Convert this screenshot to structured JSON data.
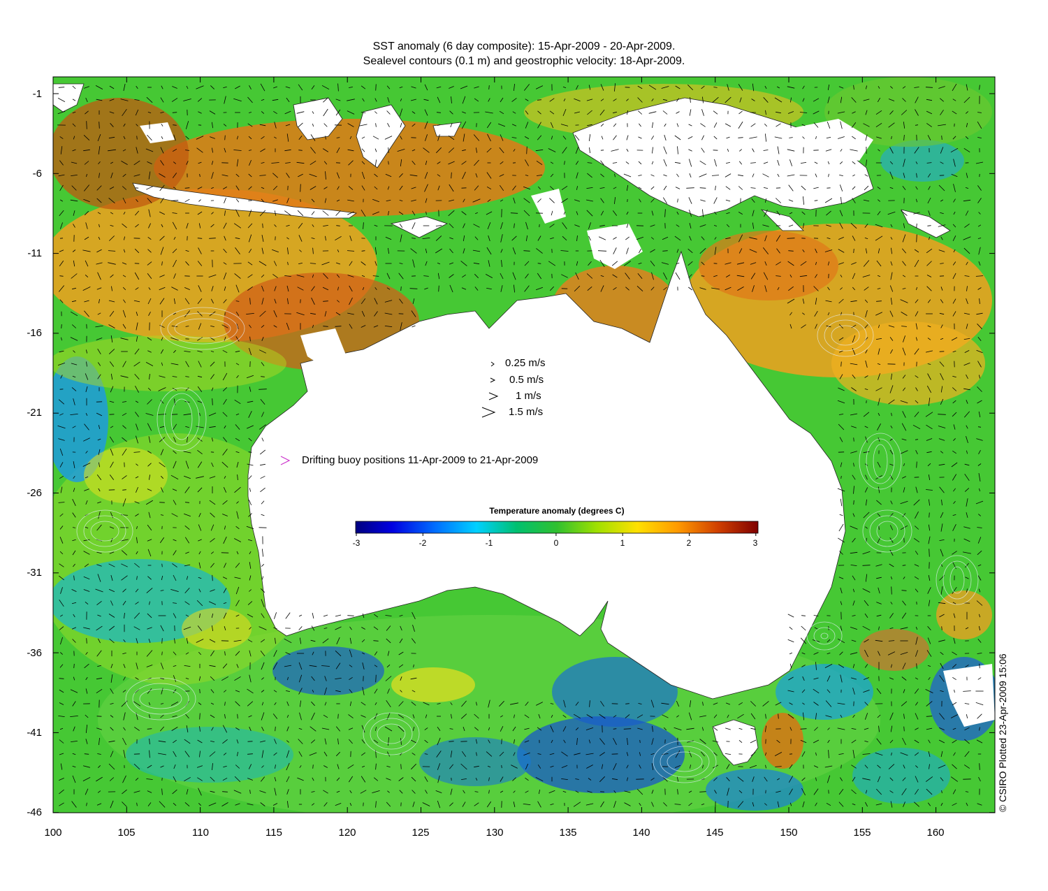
{
  "title": {
    "line1": "SST anomaly (6 day composite): 15-Apr-2009 - 20-Apr-2009.",
    "line2": "Sealevel contours (0.1 m) and geostrophic velocity: 18-Apr-2009."
  },
  "axes": {
    "y_ticks": [
      "-1",
      "-6",
      "-11",
      "-16",
      "-21",
      "-26",
      "-31",
      "-36",
      "-41",
      "-46"
    ],
    "x_ticks": [
      "100",
      "105",
      "110",
      "115",
      "120",
      "125",
      "130",
      "135",
      "140",
      "145",
      "150",
      "155",
      "160"
    ]
  },
  "velocity_legend": [
    {
      "label": "0.25 m/s",
      "speed": 0.25
    },
    {
      "label": "0.5 m/s",
      "speed": 0.5
    },
    {
      "label": "1 m/s",
      "speed": 1
    },
    {
      "label": "1.5 m/s",
      "speed": 1.5
    }
  ],
  "buoy_legend": {
    "label": "Drifting buoy positions 11-Apr-2009 to 21-Apr-2009",
    "color": "#cc33cc"
  },
  "colorbar": {
    "title": "Temperature anomaly (degrees C)",
    "ticks": [
      "-3",
      "-2",
      "-1",
      "0",
      "1",
      "2",
      "3"
    ],
    "range": [
      -3,
      3
    ],
    "colors": [
      "#00007f",
      "#0000ff",
      "#0080ff",
      "#00e0ff",
      "#00c070",
      "#30d030",
      "#a0e000",
      "#ffe000",
      "#ff9000",
      "#e05000",
      "#a01000",
      "#7f0000"
    ]
  },
  "credit": "© CSIRO Plotted 23-Apr-2009 15:06"
}
